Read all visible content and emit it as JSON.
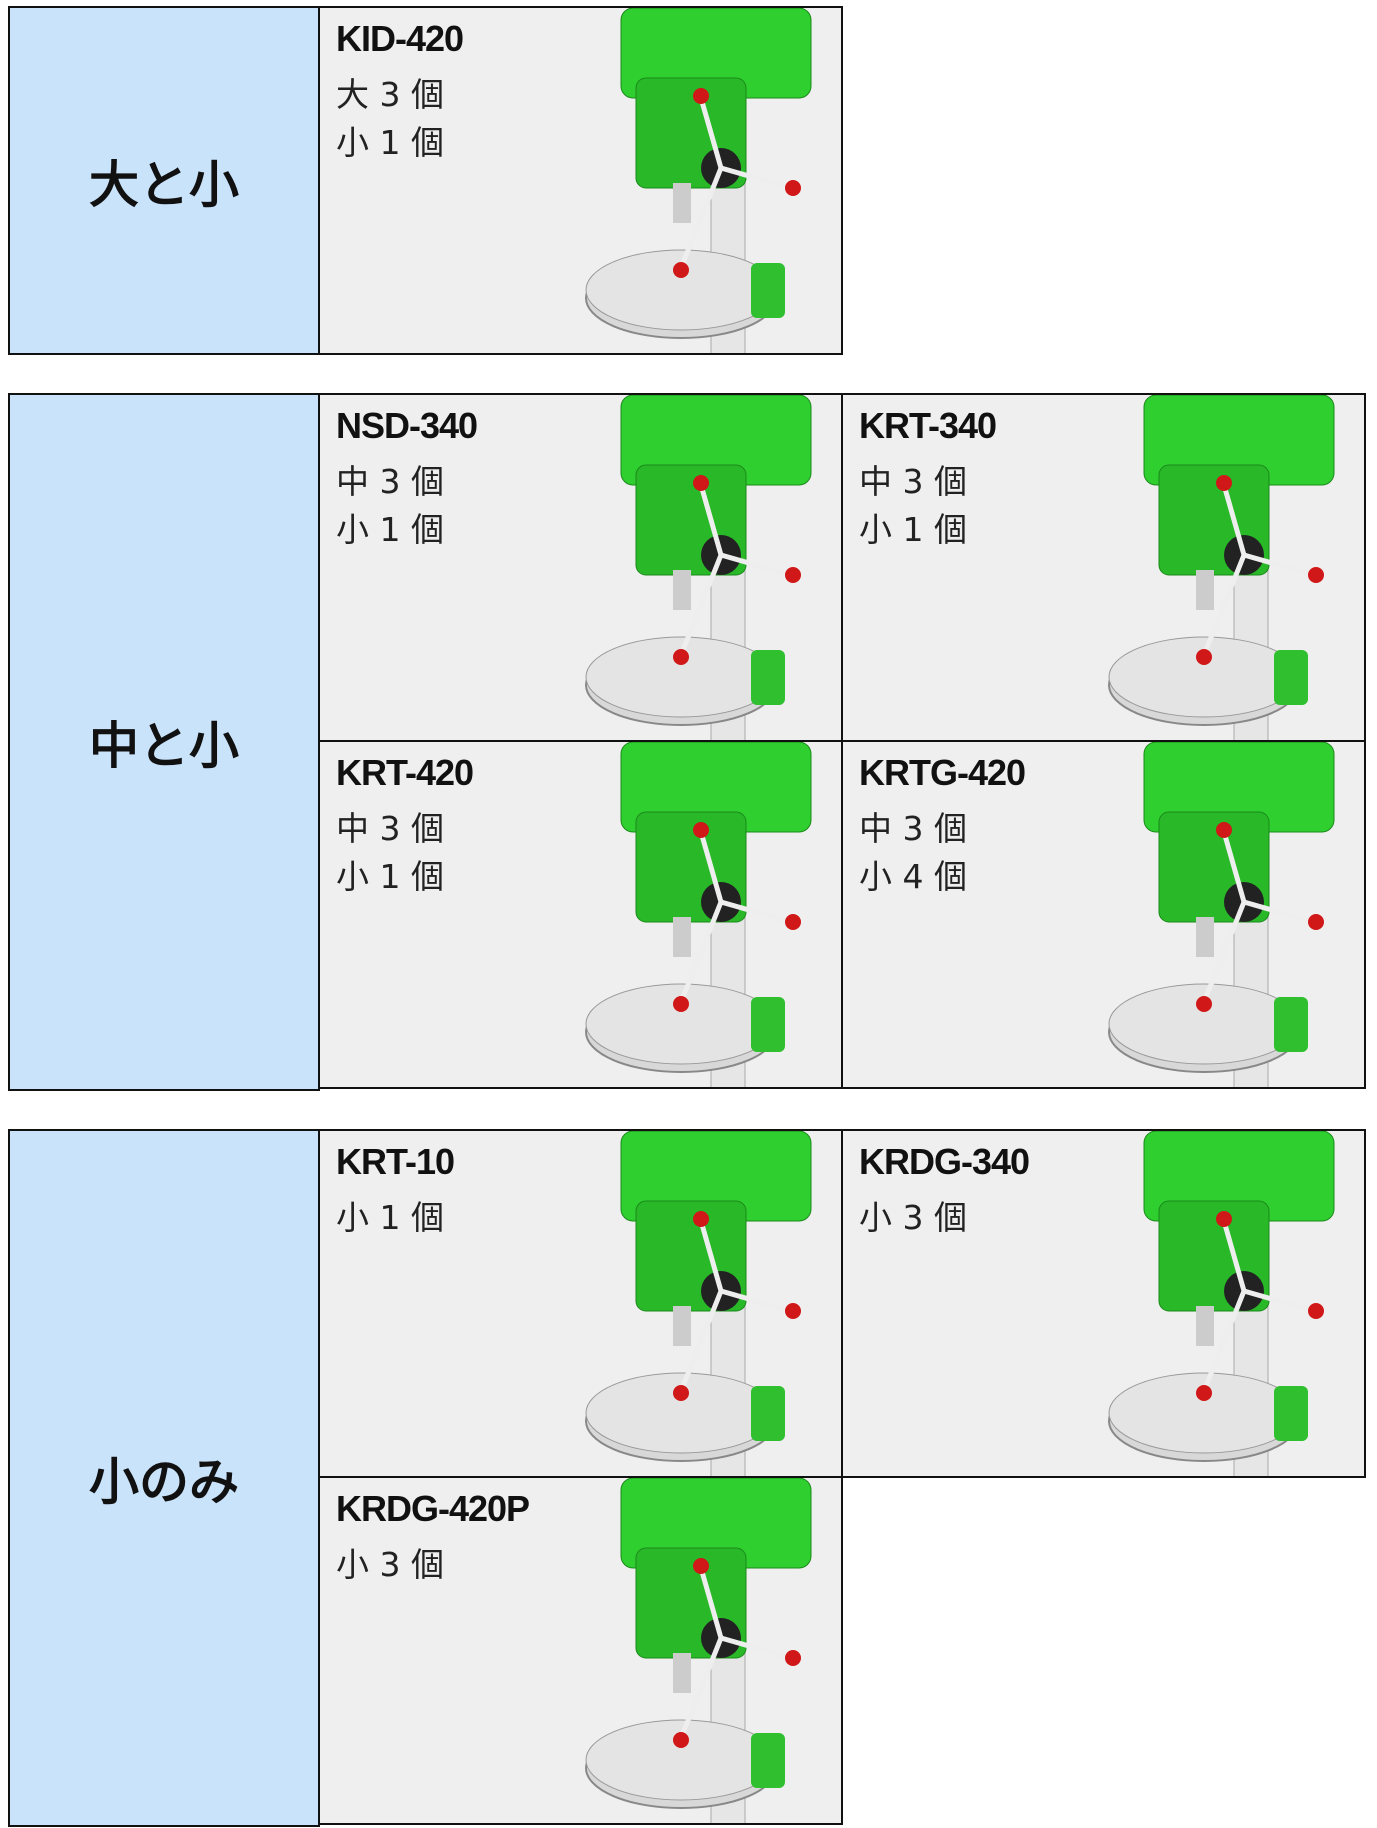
{
  "groups": [
    {
      "label": "大と小",
      "items": [
        {
          "model": "KID-420",
          "lines": [
            "大 3 個",
            "小 1 個"
          ]
        }
      ]
    },
    {
      "label": "中と小",
      "items": [
        {
          "model": "NSD-340",
          "lines": [
            "中 3 個",
            "小 1 個"
          ]
        },
        {
          "model": "KRT-340",
          "lines": [
            "中 3 個",
            "小 1 個"
          ]
        },
        {
          "model": "KRT-420",
          "lines": [
            "中 3 個",
            "小 1 個"
          ]
        },
        {
          "model": "KRTG-420",
          "lines": [
            "中 3 個",
            "小 4 個"
          ]
        }
      ]
    },
    {
      "label": "小のみ",
      "items": [
        {
          "model": "KRT-10",
          "lines": [
            "小 1 個"
          ]
        },
        {
          "model": "KRDG-340",
          "lines": [
            "小 3 個"
          ]
        },
        {
          "model": "KRDG-420P",
          "lines": [
            "小 3 個"
          ]
        }
      ]
    }
  ]
}
